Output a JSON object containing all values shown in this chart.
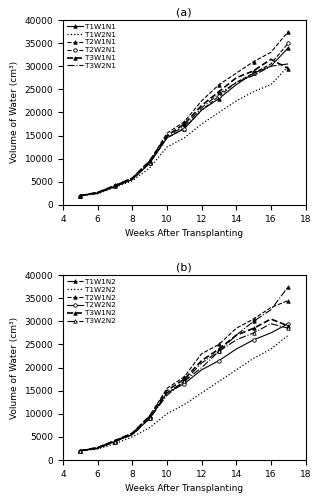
{
  "x": [
    5,
    6,
    7,
    8,
    9,
    10,
    11,
    12,
    13,
    14,
    15,
    16,
    17
  ],
  "panel_a": {
    "T1W1N1": [
      2000,
      2600,
      4000,
      5500,
      9000,
      14500,
      16500,
      20500,
      23000,
      26000,
      28500,
      30000,
      34000
    ],
    "T1W2N1": [
      2000,
      2400,
      3800,
      5200,
      8000,
      12500,
      14500,
      17500,
      20000,
      22500,
      24500,
      26000,
      30000
    ],
    "T2W1N1": [
      2000,
      2700,
      4200,
      5800,
      9500,
      15500,
      18000,
      22500,
      26000,
      28500,
      31000,
      33000,
      37500
    ],
    "T2W2N1": [
      2000,
      2500,
      4000,
      5500,
      9000,
      14500,
      16500,
      20500,
      23500,
      26500,
      28500,
      30500,
      35000
    ],
    "T3W1N1": [
      2000,
      2700,
      4200,
      5800,
      9500,
      15000,
      17500,
      21500,
      24500,
      27500,
      29000,
      31500,
      29500
    ],
    "T3W2N1": [
      2000,
      2500,
      4000,
      5500,
      9200,
      14800,
      17000,
      21000,
      24000,
      26500,
      28000,
      30000,
      30500
    ]
  },
  "panel_b": {
    "T1W1N2": [
      2000,
      2600,
      4000,
      5500,
      9000,
      14000,
      17000,
      20000,
      23500,
      27000,
      30000,
      32500,
      37500
    ],
    "T1W2N2": [
      2000,
      2400,
      3500,
      5000,
      7000,
      10000,
      12000,
      14500,
      17000,
      19500,
      22000,
      24000,
      27000
    ],
    "T2W1N2": [
      2000,
      2700,
      4200,
      5800,
      9500,
      15500,
      18000,
      23000,
      25000,
      28500,
      30500,
      33000,
      34500
    ],
    "T2W2N2": [
      2000,
      2500,
      4000,
      5500,
      9000,
      14500,
      16500,
      19500,
      21500,
      24000,
      26000,
      27500,
      29500
    ],
    "T3W1N2": [
      2000,
      2700,
      4200,
      5800,
      9500,
      15000,
      17500,
      21500,
      24000,
      27000,
      28500,
      30500,
      29000
    ],
    "T3W2N2": [
      2000,
      2500,
      4000,
      5500,
      9000,
      14500,
      17000,
      21000,
      23500,
      26000,
      27500,
      29500,
      28500
    ]
  },
  "ylim": [
    0,
    40000
  ],
  "xlim": [
    4,
    18
  ],
  "yticks": [
    0,
    5000,
    10000,
    15000,
    20000,
    25000,
    30000,
    35000,
    40000
  ],
  "xticks": [
    4,
    6,
    8,
    10,
    12,
    14,
    16,
    18
  ],
  "xlabel": "Weeks After Transplanting",
  "ylabel": "Volume of Water (cm³)",
  "title_a": "(a)",
  "title_b": "(b)",
  "styles_a": [
    {
      "linestyle": "-",
      "marker": "^",
      "markersize": 2.5,
      "markerfacecolor": "black",
      "markeredgecolor": "black",
      "color": "black",
      "linewidth": 0.8
    },
    {
      "linestyle": ":",
      "marker": null,
      "color": "black",
      "linewidth": 0.9
    },
    {
      "linestyle": "--",
      "marker": "^",
      "markersize": 2.5,
      "markerfacecolor": "black",
      "markeredgecolor": "black",
      "color": "black",
      "linewidth": 0.8
    },
    {
      "linestyle": "--",
      "marker": "o",
      "markersize": 2.5,
      "markerfacecolor": "white",
      "markeredgecolor": "black",
      "color": "black",
      "linewidth": 0.8
    },
    {
      "linestyle": "--",
      "marker": "^",
      "markersize": 2.5,
      "markerfacecolor": "black",
      "markeredgecolor": "black",
      "color": "black",
      "linewidth": 1.2
    },
    {
      "linestyle": "-.",
      "marker": null,
      "color": "black",
      "linewidth": 0.8
    }
  ],
  "styles_b": [
    {
      "linestyle": "-.",
      "marker": "^",
      "markersize": 2.5,
      "markerfacecolor": "black",
      "markeredgecolor": "black",
      "color": "black",
      "linewidth": 0.8
    },
    {
      "linestyle": ":",
      "marker": null,
      "color": "black",
      "linewidth": 0.9
    },
    {
      "linestyle": "--",
      "marker": "^",
      "markersize": 2.5,
      "markerfacecolor": "black",
      "markeredgecolor": "black",
      "color": "black",
      "linewidth": 0.8
    },
    {
      "linestyle": "-",
      "marker": "o",
      "markersize": 2.5,
      "markerfacecolor": "white",
      "markeredgecolor": "black",
      "color": "black",
      "linewidth": 0.8
    },
    {
      "linestyle": "--",
      "marker": "^",
      "markersize": 2.5,
      "markerfacecolor": "black",
      "markeredgecolor": "black",
      "color": "black",
      "linewidth": 1.2
    },
    {
      "linestyle": "-.",
      "marker": "^",
      "markersize": 2.5,
      "markerfacecolor": "white",
      "markeredgecolor": "black",
      "color": "black",
      "linewidth": 0.8
    }
  ],
  "labels_a": [
    "T1W1N1",
    "T1W2N1",
    "T2W1N1",
    "T2W2N1",
    "T3W1N1",
    "T3W2N1"
  ],
  "labels_b": [
    "T1W1N2",
    "T1W2N2",
    "T2W1N2",
    "T2W2N2",
    "T3W1N2",
    "T3W2N2"
  ]
}
